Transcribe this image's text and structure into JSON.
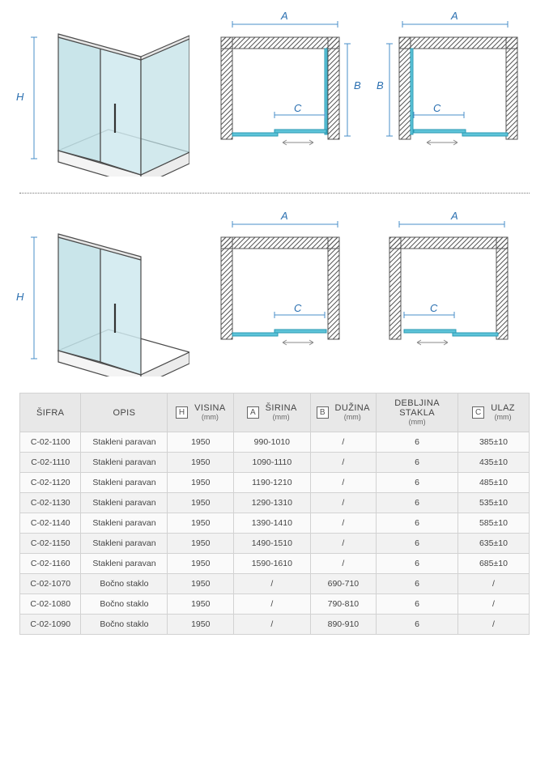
{
  "diagram_labels": {
    "H": "H",
    "A": "A",
    "B": "B",
    "C": "C"
  },
  "colors": {
    "glass_fill": "#bfe0e6",
    "glass_stroke": "#4a4a4a",
    "dim_line": "#4a8fca",
    "hatch": "#555555"
  },
  "table": {
    "headers": {
      "sifra": "ŠIFRA",
      "opis": "OPIS",
      "visina": "VISINA",
      "sirina": "ŠIRINA",
      "duzina": "DUŽINA",
      "debljina": "DEBLJINA STAKLA",
      "ulaz": "ULAZ",
      "unit": "(mm)",
      "sym": {
        "H": "H",
        "A": "A",
        "B": "B",
        "C": "C"
      }
    },
    "rows": [
      {
        "sifra": "C-02-1100",
        "opis": "Stakleni paravan",
        "visina": "1950",
        "sirina": "990-1010",
        "duzina": "/",
        "debljina": "6",
        "ulaz": "385±10"
      },
      {
        "sifra": "C-02-1110",
        "opis": "Stakleni paravan",
        "visina": "1950",
        "sirina": "1090-1110",
        "duzina": "/",
        "debljina": "6",
        "ulaz": "435±10"
      },
      {
        "sifra": "C-02-1120",
        "opis": "Stakleni paravan",
        "visina": "1950",
        "sirina": "1190-1210",
        "duzina": "/",
        "debljina": "6",
        "ulaz": "485±10"
      },
      {
        "sifra": "C-02-1130",
        "opis": "Stakleni paravan",
        "visina": "1950",
        "sirina": "1290-1310",
        "duzina": "/",
        "debljina": "6",
        "ulaz": "535±10"
      },
      {
        "sifra": "C-02-1140",
        "opis": "Stakleni paravan",
        "visina": "1950",
        "sirina": "1390-1410",
        "duzina": "/",
        "debljina": "6",
        "ulaz": "585±10"
      },
      {
        "sifra": "C-02-1150",
        "opis": "Stakleni paravan",
        "visina": "1950",
        "sirina": "1490-1510",
        "duzina": "/",
        "debljina": "6",
        "ulaz": "635±10"
      },
      {
        "sifra": "C-02-1160",
        "opis": "Stakleni paravan",
        "visina": "1950",
        "sirina": "1590-1610",
        "duzina": "/",
        "debljina": "6",
        "ulaz": "685±10"
      },
      {
        "sifra": "C-02-1070",
        "opis": "Bočno staklo",
        "visina": "1950",
        "sirina": "/",
        "duzina": "690-710",
        "debljina": "6",
        "ulaz": "/"
      },
      {
        "sifra": "C-02-1080",
        "opis": "Bočno staklo",
        "visina": "1950",
        "sirina": "/",
        "duzina": "790-810",
        "debljina": "6",
        "ulaz": "/"
      },
      {
        "sifra": "C-02-1090",
        "opis": "Bočno staklo",
        "visina": "1950",
        "sirina": "/",
        "duzina": "890-910",
        "debljina": "6",
        "ulaz": "/"
      }
    ]
  }
}
